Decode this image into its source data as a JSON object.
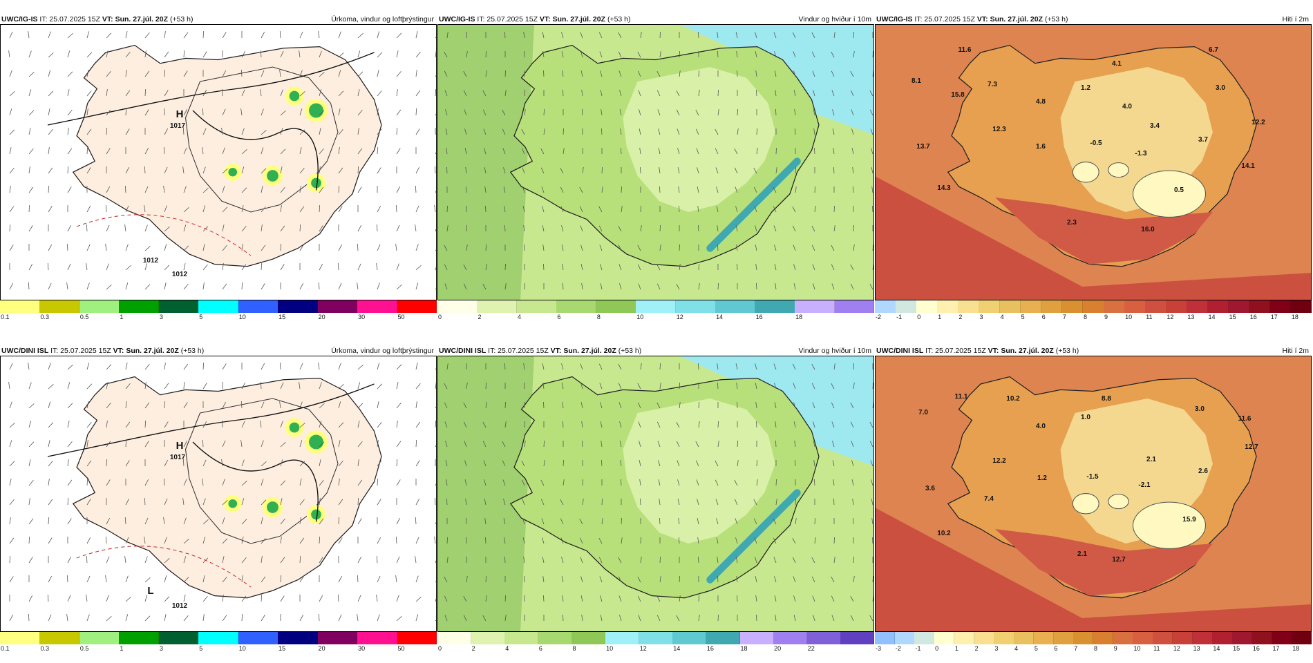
{
  "panels": [
    {
      "model": "UWC/IG-IS",
      "it": " IT: 25.07.2025 15Z ",
      "vt_label": "VT:",
      "vt": "Sun. 27.júl. 20Z",
      "lead": " (+53 h)",
      "title": "Úrkoma, vindur og loftþrýstingur",
      "type": "precip",
      "ticks": [
        "0.1",
        "0.3",
        "0.5",
        "1",
        "3",
        "5",
        "10",
        "15",
        "20",
        "30",
        "50"
      ],
      "colors": [
        "#ffff80",
        "#c8c800",
        "#a0f080",
        "#00a000",
        "#006030",
        "#00ffff",
        "#3060ff",
        "#000080",
        "#800060",
        "#ff1090",
        "#ff0000"
      ],
      "labels": [
        {
          "t": "H",
          "k": "h"
        },
        {
          "t": "1017",
          "k": "p"
        },
        {
          "t": "1012",
          "k": "p"
        },
        {
          "t": "1012",
          "k": "p"
        }
      ]
    },
    {
      "model": "UWC/IG-IS",
      "it": " IT: 25.07.2025 15Z ",
      "vt_label": "VT:",
      "vt": "Sun. 27.júl. 20Z",
      "lead": " (+53 h)",
      "title": "Vindur og hviður í 10m",
      "type": "wind",
      "ticks": [
        "0",
        "2",
        "4",
        "6",
        "8",
        "10",
        "12",
        "14",
        "16",
        "18"
      ],
      "colors": [
        "#ffffe8",
        "#dff2b0",
        "#c8e890",
        "#a8d870",
        "#90c858",
        "#a0f0f8",
        "#80e0e8",
        "#60c8d0",
        "#40a8b0",
        "#c8b0ff",
        "#a080f0"
      ],
      "labels": []
    },
    {
      "model": "UWC/IG-IS",
      "it": " IT: 25.07.2025 15Z ",
      "vt_label": "VT:",
      "vt": "Sun. 27.júl. 20Z",
      "lead": " (+53 h)",
      "title": "Hiti í 2m",
      "type": "temp",
      "ticks": [
        "-2",
        "-1",
        "0",
        "1",
        "2",
        "3",
        "4",
        "5",
        "6",
        "7",
        "8",
        "9",
        "10",
        "11",
        "12",
        "13",
        "14",
        "15",
        "16",
        "17",
        "18"
      ],
      "colors": [
        "#b0d8ff",
        "#d0e8e0",
        "#ffffd0",
        "#fff0b0",
        "#f8e090",
        "#f0d070",
        "#e8c060",
        "#e8b050",
        "#e0a040",
        "#d89030",
        "#d88030",
        "#d87040",
        "#d86040",
        "#d05040",
        "#c84038",
        "#c03038",
        "#b02030",
        "#a01830",
        "#901020",
        "#800018",
        "#700010"
      ],
      "labels": [
        {
          "t": "11.6"
        },
        {
          "t": "6.7"
        },
        {
          "t": "4.1"
        },
        {
          "t": "8.1"
        },
        {
          "t": "7.3"
        },
        {
          "t": "1.2"
        },
        {
          "t": "3.0"
        },
        {
          "t": "15.8"
        },
        {
          "t": "4.8"
        },
        {
          "t": "4.0"
        },
        {
          "t": "12.2"
        },
        {
          "t": "12.3"
        },
        {
          "t": "3.4"
        },
        {
          "t": "13.7"
        },
        {
          "t": "1.6"
        },
        {
          "t": "-0.5"
        },
        {
          "t": "-1.3"
        },
        {
          "t": "3.7"
        },
        {
          "t": "14.1"
        },
        {
          "t": "14.3"
        },
        {
          "t": "0.5"
        },
        {
          "t": "2.3"
        },
        {
          "t": "16.0"
        }
      ]
    },
    {
      "model": "UWC/DINI ISL",
      "it": " IT: 25.07.2025 15Z ",
      "vt_label": "VT:",
      "vt": "Sun. 27.júl. 20Z",
      "lead": " (+53 h)",
      "title": "Úrkoma, vindur og loftþrýstingur",
      "type": "precip",
      "ticks": [
        "0.1",
        "0.3",
        "0.5",
        "1",
        "3",
        "5",
        "10",
        "15",
        "20",
        "30",
        "50"
      ],
      "colors": [
        "#ffff80",
        "#c8c800",
        "#a0f080",
        "#00a000",
        "#006030",
        "#00ffff",
        "#3060ff",
        "#000080",
        "#800060",
        "#ff1090",
        "#ff0000"
      ],
      "labels": [
        {
          "t": "H",
          "k": "h"
        },
        {
          "t": "1017",
          "k": "p"
        },
        {
          "t": "L",
          "k": "h"
        },
        {
          "t": "1012",
          "k": "p"
        }
      ]
    },
    {
      "model": "UWC/DINI ISL",
      "it": " IT: 25.07.2025 15Z ",
      "vt_label": "VT:",
      "vt": "Sun. 27.júl. 20Z",
      "lead": " (+53 h)",
      "title": "Vindur og hviður í 10m",
      "type": "wind",
      "ticks": [
        "0",
        "2",
        "4",
        "6",
        "8",
        "10",
        "12",
        "14",
        "16",
        "18",
        "20",
        "22"
      ],
      "colors": [
        "#ffffe8",
        "#dff2b0",
        "#c8e890",
        "#a8d870",
        "#90c858",
        "#a0f0f8",
        "#80e0e8",
        "#60c8d0",
        "#40a8b0",
        "#c8b0ff",
        "#a080f0",
        "#8060d8",
        "#6040c0"
      ],
      "labels": []
    },
    {
      "model": "UWC/DINI ISL",
      "it": " IT: 25.07.2025 15Z ",
      "vt_label": "VT:",
      "vt": "Sun. 27.júl. 20Z",
      "lead": " (+53 h)",
      "title": "Hiti í 2m",
      "type": "temp",
      "ticks": [
        "-3",
        "-2",
        "-1",
        "0",
        "1",
        "2",
        "3",
        "4",
        "5",
        "6",
        "7",
        "8",
        "9",
        "10",
        "11",
        "12",
        "13",
        "14",
        "15",
        "16",
        "17",
        "18"
      ],
      "colors": [
        "#90c0ff",
        "#b0d8ff",
        "#d0e8e0",
        "#ffffd0",
        "#fff0b0",
        "#f8e090",
        "#f0d070",
        "#e8c060",
        "#e8b050",
        "#e0a040",
        "#d89030",
        "#d88030",
        "#d87040",
        "#d86040",
        "#d05040",
        "#c84038",
        "#c03038",
        "#b02030",
        "#a01830",
        "#901020",
        "#800018",
        "#700010"
      ],
      "labels": [
        {
          "t": "11.1"
        },
        {
          "t": "10.2"
        },
        {
          "t": "8.8"
        },
        {
          "t": "7.0"
        },
        {
          "t": "1.0"
        },
        {
          "t": "3.0"
        },
        {
          "t": "11.6"
        },
        {
          "t": "4.0"
        },
        {
          "t": "12.7"
        },
        {
          "t": "12.2"
        },
        {
          "t": "2.1"
        },
        {
          "t": "3.6"
        },
        {
          "t": "1.2"
        },
        {
          "t": "-1.5"
        },
        {
          "t": "-2.1"
        },
        {
          "t": "2.6"
        },
        {
          "t": "7.4"
        },
        {
          "t": "15.9"
        },
        {
          "t": "10.2"
        },
        {
          "t": "2.1"
        },
        {
          "t": "12.7"
        }
      ]
    }
  ]
}
